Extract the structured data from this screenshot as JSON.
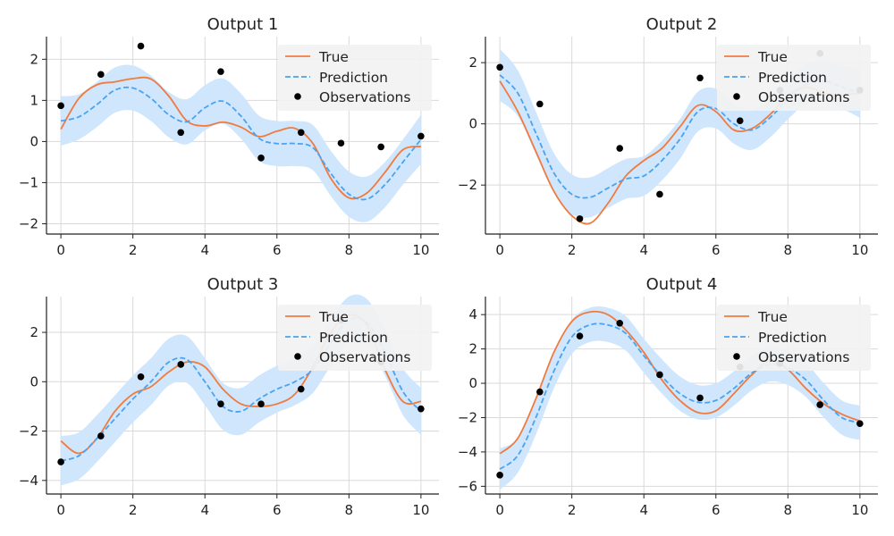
{
  "chart_data": [
    {
      "type": "line",
      "title": "Output 1",
      "xlim": [
        -0.4,
        10.5
      ],
      "ylim": [
        -2.25,
        2.55
      ],
      "xticks": [
        0,
        2,
        4,
        6,
        8,
        10
      ],
      "yticks": [
        -2,
        -1,
        0,
        1,
        2
      ],
      "ytick_labels": [
        "−2",
        "−1",
        "0",
        "1",
        "2"
      ],
      "legend": {
        "position": "top-right",
        "entries": [
          "True",
          "Prediction",
          "Observations"
        ]
      },
      "x": [
        0,
        0.5,
        1,
        1.5,
        2,
        2.5,
        3,
        3.5,
        4,
        4.5,
        5,
        5.5,
        6,
        6.5,
        7,
        7.5,
        8,
        8.5,
        9,
        9.5,
        10
      ],
      "series": [
        {
          "name": "True",
          "values": [
            0.3,
            1.05,
            1.38,
            1.45,
            1.53,
            1.52,
            1.1,
            0.5,
            0.38,
            0.47,
            0.35,
            0.12,
            0.25,
            0.32,
            -0.05,
            -0.9,
            -1.37,
            -1.25,
            -0.75,
            -0.2,
            -0.12
          ]
        },
        {
          "name": "Prediction",
          "values": [
            0.5,
            0.6,
            0.9,
            1.25,
            1.3,
            1.05,
            0.65,
            0.48,
            0.82,
            0.98,
            0.62,
            0.08,
            -0.05,
            -0.05,
            -0.15,
            -0.78,
            -1.28,
            -1.4,
            -1.05,
            -0.5,
            0.05
          ]
        },
        {
          "name": "Uncertainty band half-width",
          "values": [
            0.6,
            0.55,
            0.55,
            0.55,
            0.55,
            0.55,
            0.55,
            0.55,
            0.55,
            0.55,
            0.55,
            0.55,
            0.55,
            0.55,
            0.55,
            0.55,
            0.55,
            0.55,
            0.55,
            0.55,
            0.6
          ]
        }
      ],
      "observations": {
        "x": [
          0.0,
          1.11,
          2.22,
          3.33,
          4.44,
          5.56,
          6.67,
          7.78,
          8.89,
          10.0
        ],
        "y": [
          0.87,
          1.63,
          2.32,
          0.22,
          1.7,
          -0.4,
          0.22,
          -0.04,
          -0.13,
          0.13
        ]
      }
    },
    {
      "type": "line",
      "title": "Output 2",
      "xlim": [
        -0.4,
        10.5
      ],
      "ylim": [
        -3.6,
        2.85
      ],
      "xticks": [
        0,
        2,
        4,
        6,
        8,
        10
      ],
      "yticks": [
        -2,
        0,
        2
      ],
      "ytick_labels": [
        "−2",
        "0",
        "2"
      ],
      "legend": {
        "position": "top-right",
        "entries": [
          "True",
          "Prediction",
          "Observations"
        ]
      },
      "x": [
        0,
        0.5,
        1,
        1.5,
        2,
        2.5,
        3,
        3.5,
        4,
        4.5,
        5,
        5.5,
        6,
        6.5,
        7,
        7.5,
        8,
        8.5,
        9,
        9.5,
        10
      ],
      "series": [
        {
          "name": "True",
          "values": [
            1.4,
            0.4,
            -0.9,
            -2.2,
            -3.0,
            -3.25,
            -2.6,
            -1.7,
            -1.2,
            -0.8,
            -0.1,
            0.6,
            0.4,
            -0.2,
            -0.15,
            0.3,
            0.9,
            1.2,
            1.0,
            0.95,
            1.0
          ]
        },
        {
          "name": "Prediction",
          "values": [
            1.6,
            1.0,
            -0.3,
            -1.6,
            -2.3,
            -2.4,
            -2.1,
            -1.8,
            -1.7,
            -1.2,
            -0.5,
            0.4,
            0.5,
            0.0,
            -0.2,
            0.2,
            0.8,
            1.3,
            1.4,
            1.2,
            1.0
          ]
        },
        {
          "name": "Uncertainty band half-width",
          "values": [
            0.85,
            0.75,
            0.7,
            0.65,
            0.65,
            0.65,
            0.65,
            0.65,
            0.65,
            0.65,
            0.65,
            0.65,
            0.65,
            0.65,
            0.65,
            0.65,
            0.65,
            0.65,
            0.65,
            0.7,
            0.8
          ]
        }
      ],
      "observations": {
        "x": [
          0.0,
          1.11,
          2.22,
          3.33,
          4.44,
          5.56,
          6.67,
          7.78,
          8.89,
          10.0
        ],
        "y": [
          1.85,
          0.65,
          -3.1,
          -0.8,
          -2.3,
          1.5,
          0.1,
          1.1,
          2.3,
          1.1
        ]
      }
    },
    {
      "type": "line",
      "title": "Output 3",
      "xlim": [
        -0.4,
        10.5
      ],
      "ylim": [
        -4.55,
        3.45
      ],
      "xticks": [
        0,
        2,
        4,
        6,
        8,
        10
      ],
      "yticks": [
        -4,
        -2,
        0,
        2
      ],
      "ytick_labels": [
        "−4",
        "−2",
        "0",
        "2"
      ],
      "legend": {
        "position": "top-right",
        "entries": [
          "True",
          "Prediction",
          "Observations"
        ]
      },
      "x": [
        0,
        0.5,
        1,
        1.5,
        2,
        2.5,
        3,
        3.5,
        4,
        4.5,
        5,
        5.5,
        6,
        6.5,
        7,
        7.5,
        8,
        8.5,
        9,
        9.5,
        10
      ],
      "series": [
        {
          "name": "True",
          "values": [
            -2.4,
            -2.9,
            -2.3,
            -1.2,
            -0.5,
            -0.2,
            0.4,
            0.8,
            0.6,
            -0.3,
            -0.9,
            -1.0,
            -0.9,
            -0.5,
            0.6,
            2.0,
            2.7,
            2.3,
            0.5,
            -0.8,
            -0.8
          ]
        },
        {
          "name": "Prediction",
          "values": [
            -3.2,
            -3.0,
            -2.3,
            -1.5,
            -0.7,
            0.0,
            0.8,
            0.9,
            0.0,
            -1.0,
            -1.2,
            -0.7,
            -0.3,
            0.0,
            0.5,
            1.6,
            2.5,
            2.4,
            1.2,
            -0.4,
            -1.2
          ]
        },
        {
          "name": "Uncertainty band half-width",
          "values": [
            1.0,
            0.95,
            0.95,
            0.95,
            0.95,
            0.95,
            0.95,
            0.95,
            0.95,
            0.95,
            0.95,
            0.95,
            0.95,
            0.95,
            0.95,
            0.95,
            0.95,
            0.95,
            0.95,
            0.95,
            0.95
          ]
        }
      ],
      "observations": {
        "x": [
          0.0,
          1.11,
          2.22,
          3.33,
          4.44,
          5.56,
          6.67,
          7.78,
          8.89,
          10.0
        ],
        "y": [
          -3.25,
          -2.2,
          0.2,
          0.7,
          -0.9,
          -0.9,
          -0.3,
          2.5,
          0.8,
          -1.1
        ]
      }
    },
    {
      "type": "line",
      "title": "Output 4",
      "xlim": [
        -0.4,
        10.5
      ],
      "ylim": [
        -6.45,
        5.05
      ],
      "xticks": [
        0,
        2,
        4,
        6,
        8,
        10
      ],
      "yticks": [
        -6,
        -4,
        -2,
        0,
        2,
        4
      ],
      "ytick_labels": [
        "−6",
        "−4",
        "−2",
        "0",
        "2",
        "4"
      ],
      "legend": {
        "position": "top-right",
        "entries": [
          "True",
          "Prediction",
          "Observations"
        ]
      },
      "x": [
        0,
        0.5,
        1,
        1.5,
        2,
        2.5,
        3,
        3.5,
        4,
        4.5,
        5,
        5.5,
        6,
        6.5,
        7,
        7.5,
        8,
        8.5,
        9,
        9.5,
        10
      ],
      "series": [
        {
          "name": "True",
          "values": [
            -4.1,
            -3.2,
            -0.9,
            1.8,
            3.6,
            4.15,
            4.0,
            3.1,
            1.8,
            0.2,
            -1.0,
            -1.7,
            -1.6,
            -0.6,
            0.5,
            1.3,
            0.8,
            -0.3,
            -1.2,
            -1.8,
            -2.2
          ]
        },
        {
          "name": "Prediction",
          "values": [
            -5.0,
            -4.2,
            -2.0,
            0.7,
            2.7,
            3.4,
            3.4,
            2.9,
            1.6,
            0.4,
            -0.6,
            -1.1,
            -1.0,
            -0.3,
            0.6,
            1.1,
            0.9,
            0.2,
            -1.0,
            -2.0,
            -2.3
          ]
        },
        {
          "name": "Uncertainty band half-width",
          "values": [
            1.2,
            1.0,
            1.0,
            1.0,
            1.0,
            1.0,
            1.0,
            1.0,
            1.0,
            1.0,
            1.0,
            1.0,
            1.0,
            1.0,
            1.0,
            1.0,
            1.0,
            1.0,
            1.0,
            1.0,
            1.0
          ]
        }
      ],
      "observations": {
        "x": [
          0.0,
          1.11,
          2.22,
          3.33,
          4.44,
          5.56,
          6.67,
          7.78,
          8.89,
          10.0
        ],
        "y": [
          -5.35,
          -0.5,
          2.75,
          3.5,
          0.5,
          -0.85,
          0.95,
          1.15,
          -1.25,
          -2.35
        ]
      }
    }
  ],
  "colors": {
    "true": "#f07b3f",
    "prediction": "#4aa3f0",
    "band": "#cfe6fd",
    "observations": "#000000",
    "legend_bg": "#f2f2f2"
  }
}
